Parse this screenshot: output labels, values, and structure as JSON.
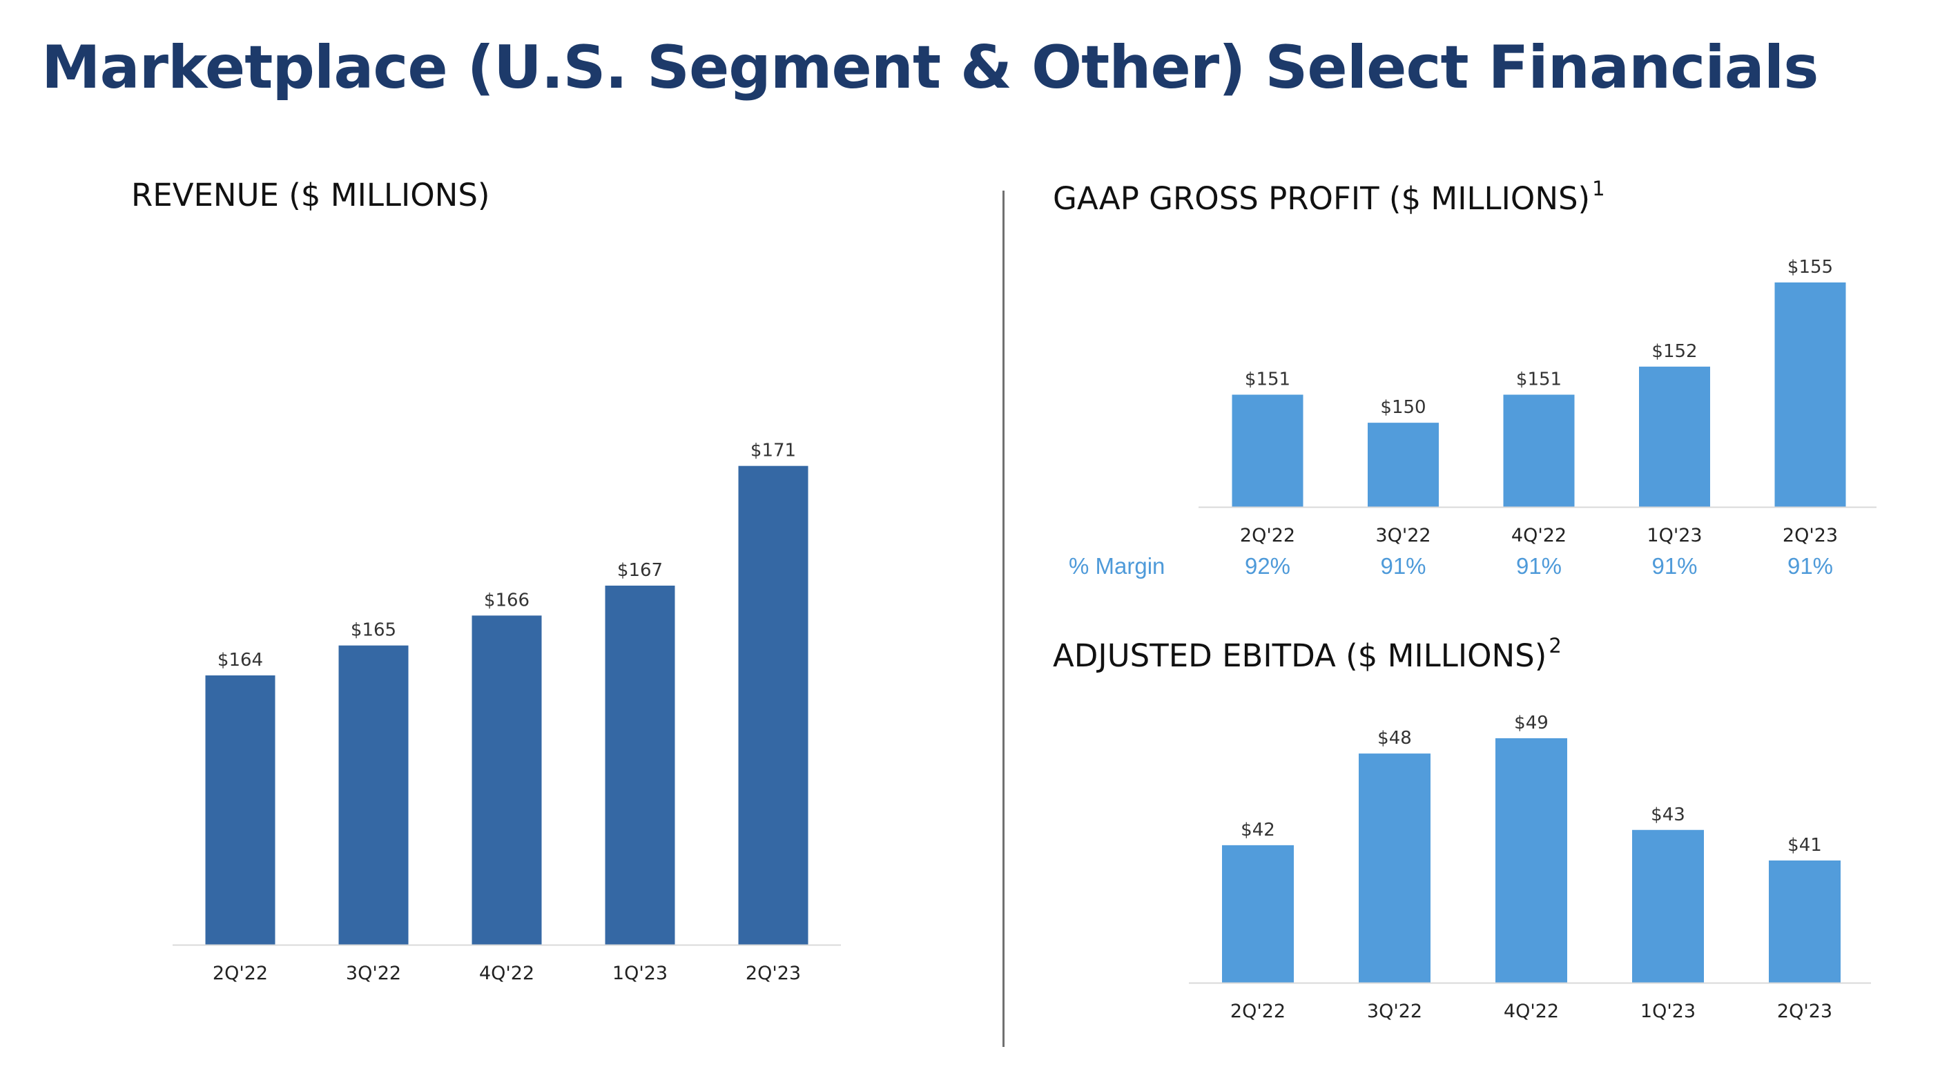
{
  "page": {
    "title": "Marketplace (U.S. Segment & Other) Select Financials",
    "accent_color": "#1d3a6a"
  },
  "chart_data": [
    {
      "id": "revenue",
      "type": "bar",
      "title": "REVENUE ($ MILLIONS)",
      "footnote": "",
      "categories": [
        "2Q'22",
        "3Q'22",
        "4Q'22",
        "1Q'23",
        "2Q'23"
      ],
      "values": [
        164,
        165,
        166,
        167,
        171
      ],
      "data_labels": [
        "$164",
        "$165",
        "$166",
        "$167",
        "$171"
      ],
      "ylim": [
        155,
        173
      ],
      "bar_color": "#3568a4",
      "grid": false,
      "legend": "none"
    },
    {
      "id": "gross_profit",
      "type": "bar",
      "title": "GAAP GROSS PROFIT ($ MILLIONS)",
      "footnote": "1",
      "categories": [
        "2Q'22",
        "3Q'22",
        "4Q'22",
        "1Q'23",
        "2Q'23"
      ],
      "values": [
        151,
        150,
        151,
        152,
        155
      ],
      "data_labels": [
        "$151",
        "$150",
        "$151",
        "$152",
        "$155"
      ],
      "ylim": [
        147,
        155
      ],
      "bar_color": "#529cdb",
      "grid": false,
      "legend": "none",
      "margin_row": {
        "label": "% Margin",
        "values": [
          "92%",
          "91%",
          "91%",
          "91%",
          "91%"
        ],
        "color": "#4e9ad9"
      }
    },
    {
      "id": "adjusted_ebitda",
      "type": "bar",
      "title": "ADJUSTED EBITDA ($ MILLIONS)",
      "footnote": "2",
      "categories": [
        "2Q'22",
        "3Q'22",
        "4Q'22",
        "1Q'23",
        "2Q'23"
      ],
      "values": [
        42,
        48,
        49,
        43,
        41
      ],
      "data_labels": [
        "$42",
        "$48",
        "$49",
        "$43",
        "$41"
      ],
      "ylim": [
        33,
        49
      ],
      "bar_color": "#529cdb",
      "grid": false,
      "legend": "none"
    }
  ]
}
